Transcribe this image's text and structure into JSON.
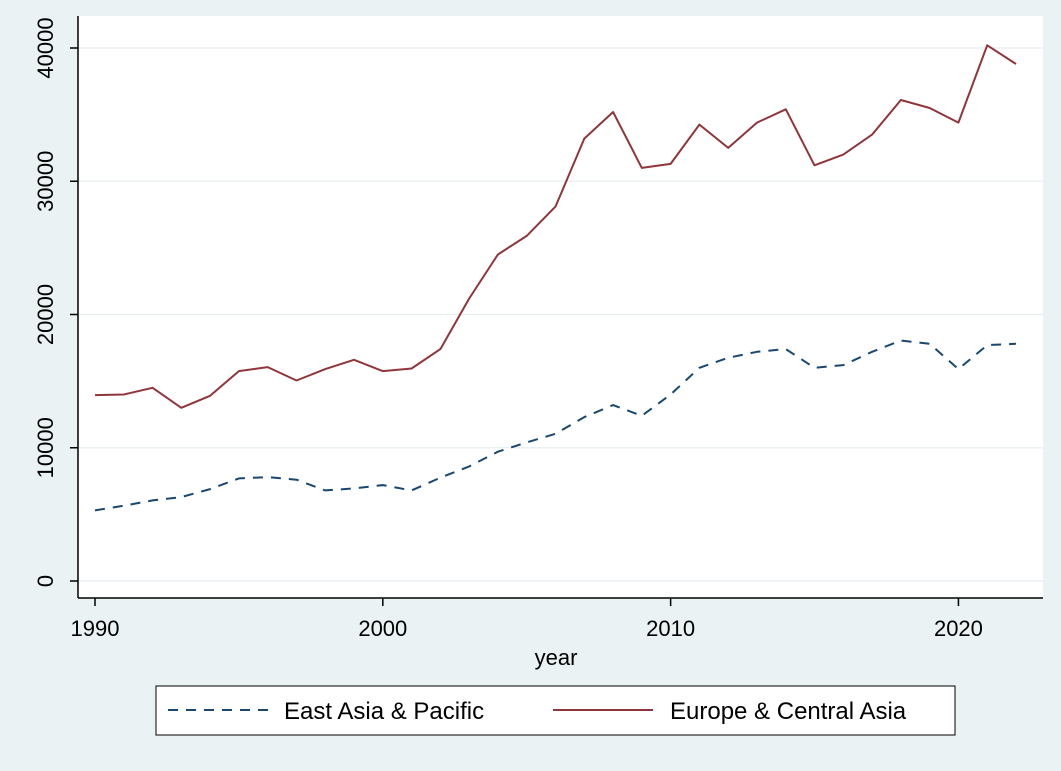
{
  "chart_data": {
    "type": "line",
    "xlabel": "year",
    "ylabel": "",
    "xlim": [
      1990,
      2022
    ],
    "ylim": [
      0,
      40000
    ],
    "x_ticks": [
      1990,
      2000,
      2010,
      2020
    ],
    "y_ticks": [
      0,
      10000,
      20000,
      30000,
      40000
    ],
    "grid": true,
    "legend_position": "bottom",
    "x": [
      1990,
      1991,
      1992,
      1993,
      1994,
      1995,
      1996,
      1997,
      1998,
      1999,
      2000,
      2001,
      2002,
      2003,
      2004,
      2005,
      2006,
      2007,
      2008,
      2009,
      2010,
      2011,
      2012,
      2013,
      2014,
      2015,
      2016,
      2017,
      2018,
      2019,
      2020,
      2021,
      2022
    ],
    "series": [
      {
        "name": "East Asia & Pacific",
        "color": "#1a476f",
        "dash": "dashed",
        "values": [
          5300,
          5650,
          6050,
          6300,
          6900,
          7700,
          7800,
          7600,
          6800,
          6950,
          7200,
          6800,
          7750,
          8600,
          9700,
          10400,
          11050,
          12300,
          13200,
          12400,
          14000,
          16000,
          16750,
          17200,
          17400,
          16000,
          16200,
          17200,
          18050,
          17800,
          15900,
          17700,
          17800
        ]
      },
      {
        "name": "Europe & Central Asia",
        "color": "#90353b",
        "dash": "solid",
        "values": [
          13950,
          14000,
          14500,
          13000,
          13900,
          15750,
          16050,
          15050,
          15900,
          16600,
          15750,
          15950,
          17400,
          21200,
          24500,
          25900,
          28100,
          33200,
          35200,
          31000,
          31300,
          34250,
          32500,
          34400,
          35400,
          31200,
          32000,
          33500,
          36100,
          35500,
          34400,
          40200,
          38800
        ]
      }
    ]
  }
}
